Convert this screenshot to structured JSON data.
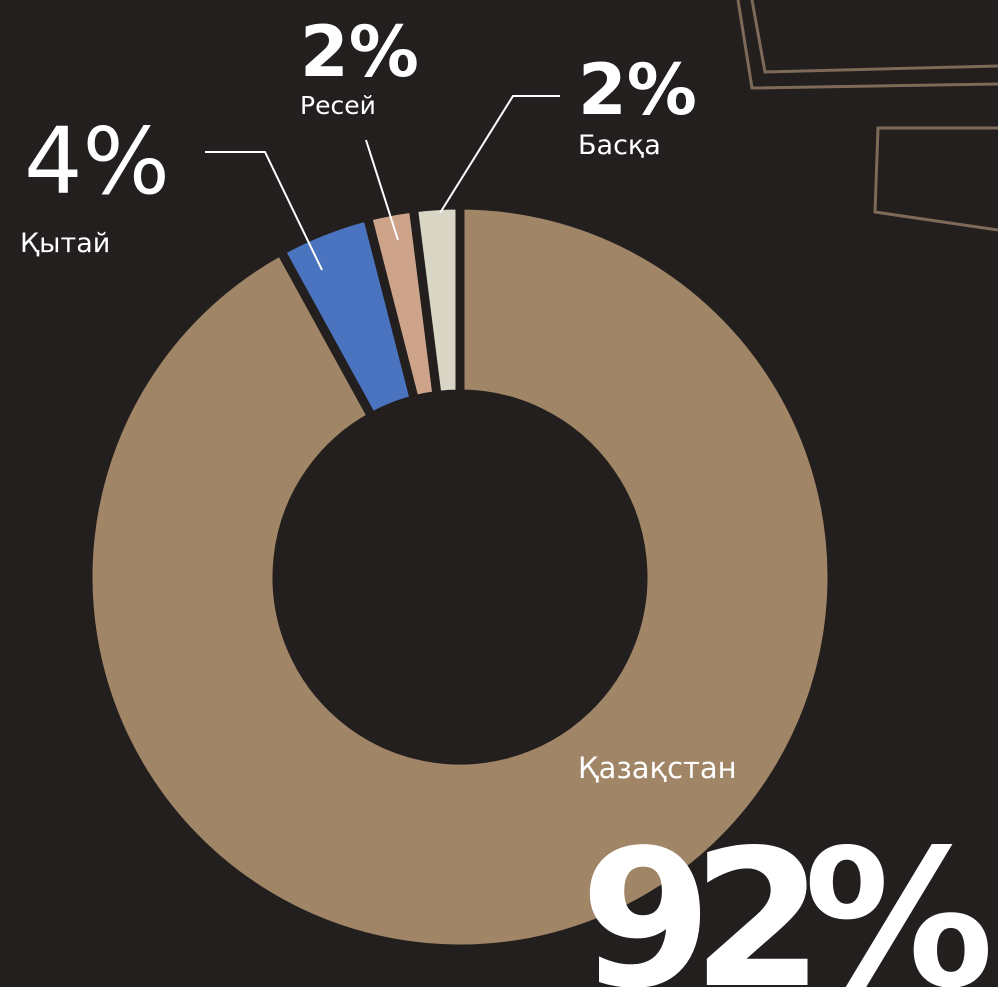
{
  "chart_data": {
    "type": "donut",
    "categories": [
      "Қазақстан",
      "Қытай",
      "Ресей",
      "Басқа"
    ],
    "values": [
      92,
      4,
      2,
      2
    ],
    "value_labels": [
      "92%",
      "4%",
      "2%",
      "2%"
    ],
    "colors": [
      "#a08566",
      "#4a74bf",
      "#cda48a",
      "#d9d6c6"
    ]
  }
}
